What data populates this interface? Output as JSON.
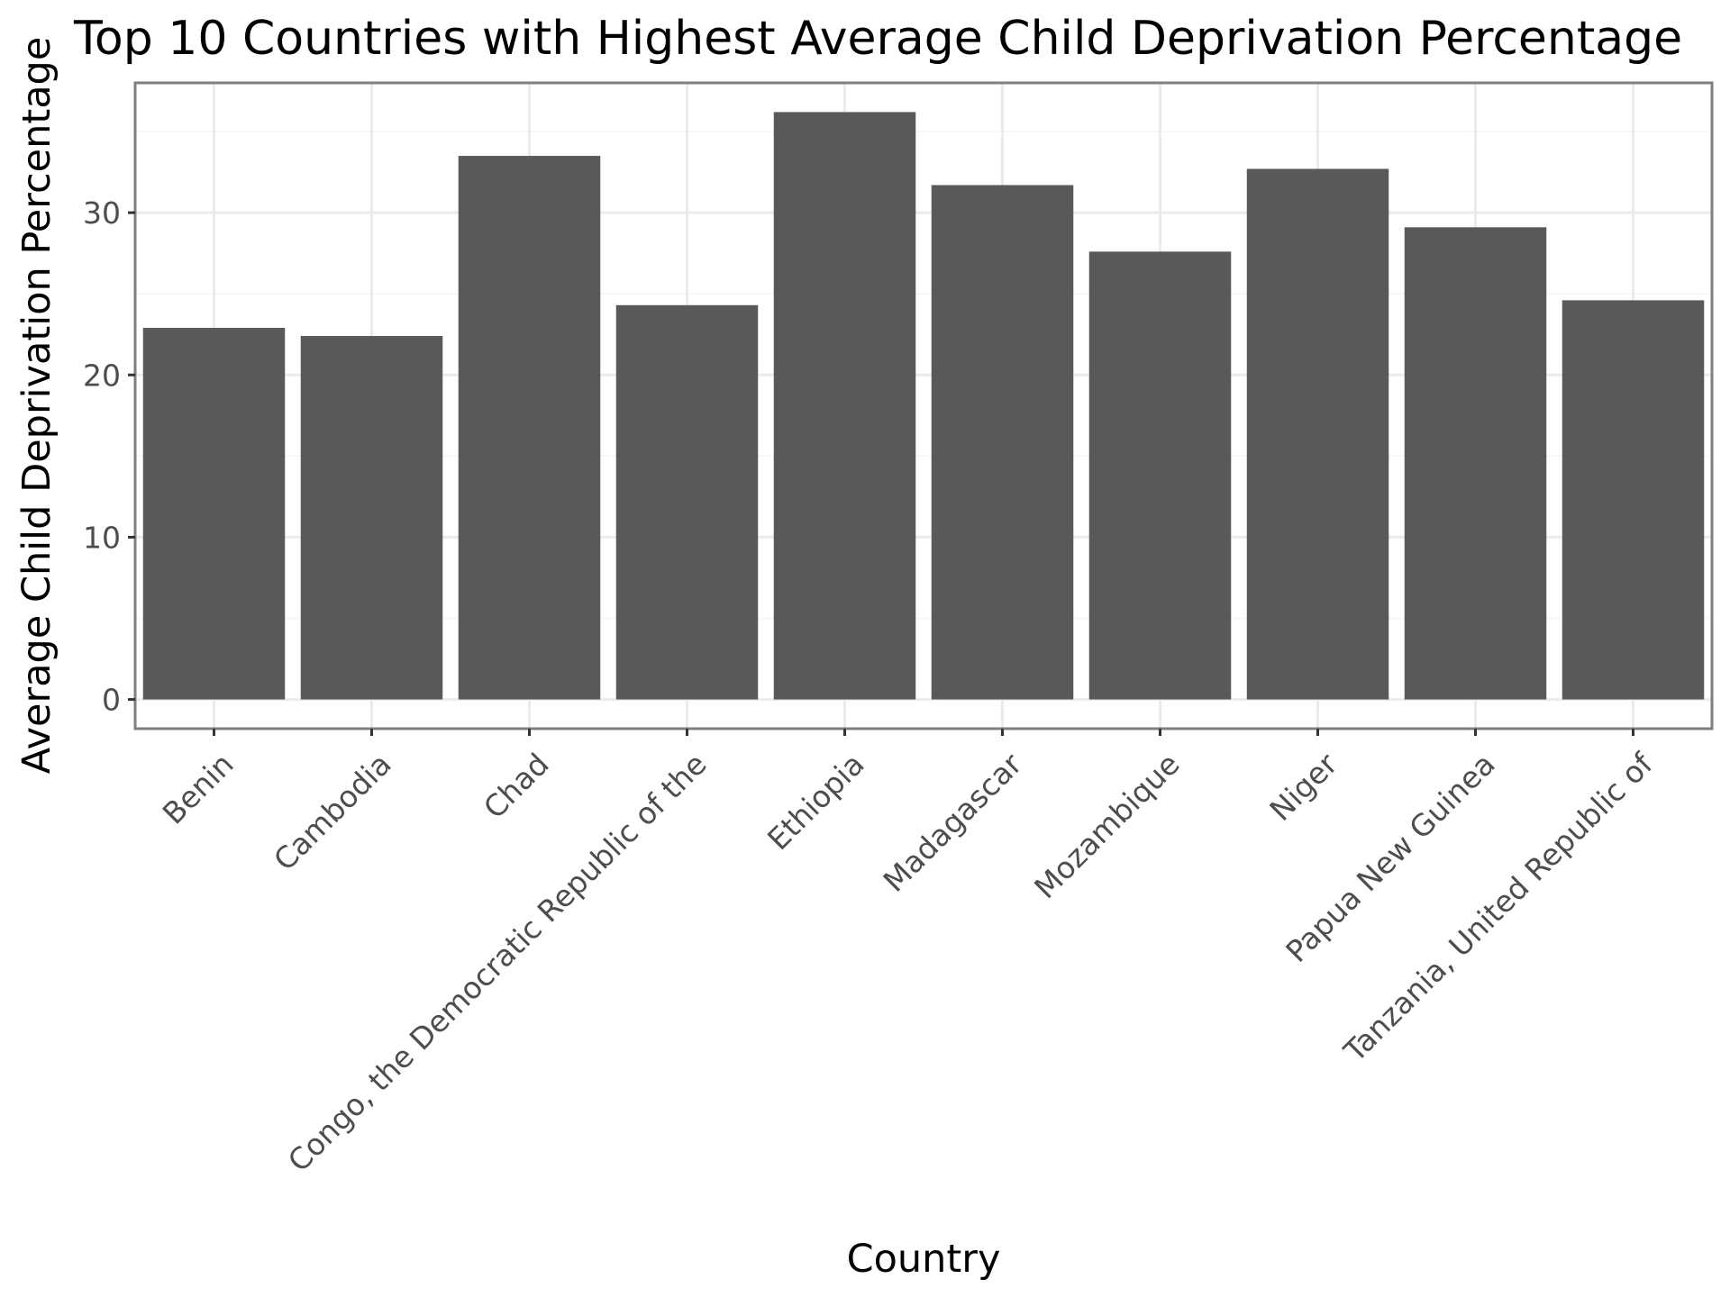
{
  "chart_data": {
    "type": "bar",
    "title": "Top 10 Countries with Highest Average Child Deprivation Percentage",
    "xlabel": "Country",
    "ylabel": "Average Child Deprivation Percentage",
    "categories": [
      "Benin",
      "Cambodia",
      "Chad",
      "Congo, the Democratic Republic of the",
      "Ethiopia",
      "Madagascar",
      "Mozambique",
      "Niger",
      "Papua New Guinea",
      "Tanzania, United Republic of"
    ],
    "values": [
      22.9,
      22.4,
      33.5,
      24.3,
      36.2,
      31.7,
      27.6,
      32.7,
      29.1,
      24.6
    ],
    "ylim": [
      -1.8,
      38.0
    ],
    "yticks": [
      0,
      10,
      20,
      30
    ],
    "grid": true,
    "legend": "none",
    "colors": {
      "bar": "#595959",
      "panel_border": "#7f7f7f",
      "grid_major": "#ebebeb",
      "grid_minor": "#f5f5f5",
      "tick_text": "#4d4d4d",
      "tick_mark": "#333333"
    }
  }
}
